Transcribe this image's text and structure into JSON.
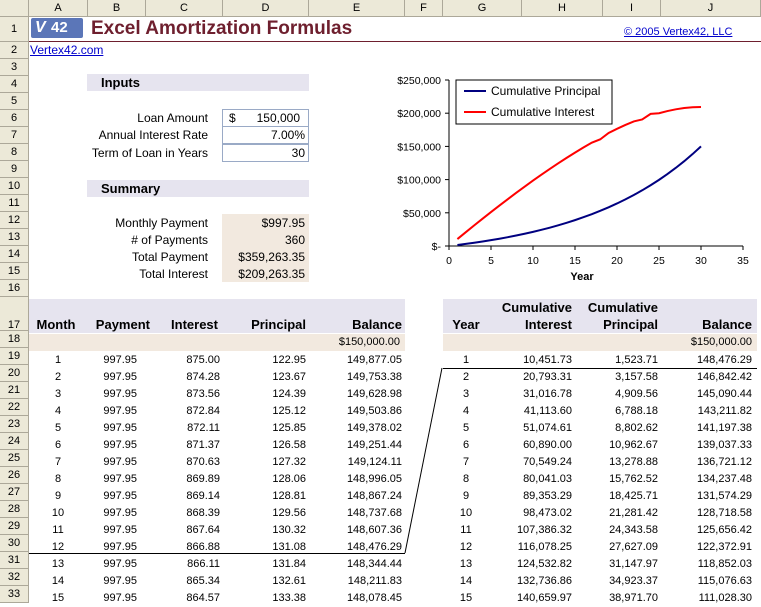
{
  "title": "Excel Amortization Formulas",
  "logo_text": "42",
  "copyright": "© 2005 Vertex42, LLC",
  "site_link": "Vertex42.com",
  "columns": [
    "A",
    "B",
    "C",
    "D",
    "E",
    "F",
    "G",
    "H",
    "I",
    "J"
  ],
  "rows": [
    "1",
    "2",
    "3",
    "4",
    "5",
    "6",
    "7",
    "8",
    "9",
    "10",
    "11",
    "12",
    "13",
    "14",
    "15",
    "16",
    "17",
    "18",
    "19",
    "20",
    "21",
    "22",
    "23",
    "24",
    "25",
    "26",
    "27",
    "28",
    "29",
    "30",
    "31",
    "32",
    "33"
  ],
  "inputs": {
    "header": "Inputs",
    "loan_amount_label": "Loan Amount",
    "loan_amount_currency": "$",
    "loan_amount_value": "150,000",
    "rate_label": "Annual Interest Rate",
    "rate_value": "7.00%",
    "term_label": "Term of Loan in Years",
    "term_value": "30"
  },
  "summary": {
    "header": "Summary",
    "monthly_payment_label": "Monthly Payment",
    "monthly_payment_value": "$997.95",
    "num_payments_label": "# of Payments",
    "num_payments_value": "360",
    "total_payment_label": "Total Payment",
    "total_payment_value": "$359,263.35",
    "total_interest_label": "Total Interest",
    "total_interest_value": "$209,263.35"
  },
  "monthly_table": {
    "headers": [
      "Month",
      "Payment",
      "Interest",
      "Principal",
      "Balance"
    ],
    "start_balance": "$150,000.00",
    "rows": [
      [
        "1",
        "997.95",
        "875.00",
        "122.95",
        "149,877.05"
      ],
      [
        "2",
        "997.95",
        "874.28",
        "123.67",
        "149,753.38"
      ],
      [
        "3",
        "997.95",
        "873.56",
        "124.39",
        "149,628.98"
      ],
      [
        "4",
        "997.95",
        "872.84",
        "125.12",
        "149,503.86"
      ],
      [
        "5",
        "997.95",
        "872.11",
        "125.85",
        "149,378.02"
      ],
      [
        "6",
        "997.95",
        "871.37",
        "126.58",
        "149,251.44"
      ],
      [
        "7",
        "997.95",
        "870.63",
        "127.32",
        "149,124.11"
      ],
      [
        "8",
        "997.95",
        "869.89",
        "128.06",
        "148,996.05"
      ],
      [
        "9",
        "997.95",
        "869.14",
        "128.81",
        "148,867.24"
      ],
      [
        "10",
        "997.95",
        "868.39",
        "129.56",
        "148,737.68"
      ],
      [
        "11",
        "997.95",
        "867.64",
        "130.32",
        "148,607.36"
      ],
      [
        "12",
        "997.95",
        "866.88",
        "131.08",
        "148,476.29"
      ],
      [
        "13",
        "997.95",
        "866.11",
        "131.84",
        "148,344.44"
      ],
      [
        "14",
        "997.95",
        "865.34",
        "132.61",
        "148,211.83"
      ],
      [
        "15",
        "997.95",
        "864.57",
        "133.38",
        "148,078.45"
      ]
    ]
  },
  "yearly_table": {
    "headers": [
      "Year",
      "Cumulative Interest",
      "Cumulative Principal",
      "Balance"
    ],
    "header_line1": [
      "",
      "Cumulative",
      "Cumulative",
      ""
    ],
    "header_line2": [
      "Year",
      "Interest",
      "Principal",
      "Balance"
    ],
    "start_balance": "$150,000.00",
    "rows": [
      [
        "1",
        "10,451.73",
        "1,523.71",
        "148,476.29"
      ],
      [
        "2",
        "20,793.31",
        "3,157.58",
        "146,842.42"
      ],
      [
        "3",
        "31,016.78",
        "4,909.56",
        "145,090.44"
      ],
      [
        "4",
        "41,113.60",
        "6,788.18",
        "143,211.82"
      ],
      [
        "5",
        "51,074.61",
        "8,802.62",
        "141,197.38"
      ],
      [
        "6",
        "60,890.00",
        "10,962.67",
        "139,037.33"
      ],
      [
        "7",
        "70,549.24",
        "13,278.88",
        "136,721.12"
      ],
      [
        "8",
        "80,041.03",
        "15,762.52",
        "134,237.48"
      ],
      [
        "9",
        "89,353.29",
        "18,425.71",
        "131,574.29"
      ],
      [
        "10",
        "98,473.02",
        "21,281.42",
        "128,718.58"
      ],
      [
        "11",
        "107,386.32",
        "24,343.58",
        "125,656.42"
      ],
      [
        "12",
        "116,078.25",
        "27,627.09",
        "122,372.91"
      ],
      [
        "13",
        "124,532.82",
        "31,147.97",
        "118,852.03"
      ],
      [
        "14",
        "132,736.86",
        "34,923.37",
        "115,076.63"
      ],
      [
        "15",
        "140,659.97",
        "38,971.70",
        "111,028.30"
      ]
    ]
  },
  "chart_data": {
    "type": "line",
    "xlabel": "Year",
    "xlim": [
      0,
      35
    ],
    "ylim": [
      0,
      250000
    ],
    "xticks": [
      "0",
      "5",
      "10",
      "15",
      "20",
      "25",
      "30",
      "35"
    ],
    "yticks": [
      "$-",
      "$50,000",
      "$100,000",
      "$150,000",
      "$200,000",
      "$250,000"
    ],
    "legend_position": "top-left",
    "series": [
      {
        "name": "Cumulative Principal",
        "color": "#000080",
        "x": [
          1,
          2,
          3,
          4,
          5,
          6,
          7,
          8,
          9,
          10,
          11,
          12,
          13,
          14,
          15,
          16,
          17,
          18,
          19,
          20,
          21,
          22,
          23,
          24,
          25,
          26,
          27,
          28,
          29,
          30
        ],
        "values": [
          1524,
          3158,
          4910,
          6788,
          8803,
          10963,
          13279,
          15763,
          18426,
          21281,
          24344,
          27627,
          31148,
          34923,
          38972,
          43313,
          47967,
          52958,
          58310,
          64048,
          70202,
          76800,
          83875,
          91462,
          99598,
          108321,
          117676,
          127707,
          138463,
          150000
        ]
      },
      {
        "name": "Cumulative Interest",
        "color": "#FF0000",
        "x": [
          1,
          2,
          3,
          4,
          5,
          6,
          7,
          8,
          9,
          10,
          11,
          12,
          13,
          14,
          15,
          16,
          17,
          18,
          19,
          20,
          21,
          22,
          23,
          24,
          25,
          26,
          27,
          28,
          29,
          30
        ],
        "values": [
          10452,
          20793,
          31017,
          41114,
          51075,
          60890,
          70549,
          80041,
          89353,
          98473,
          107386,
          116078,
          124533,
          132737,
          140660,
          148294,
          155615,
          160599,
          170224,
          176462,
          182283,
          187660,
          190560,
          198938,
          200000,
          203252,
          205872,
          207816,
          209035,
          209263
        ]
      }
    ]
  }
}
